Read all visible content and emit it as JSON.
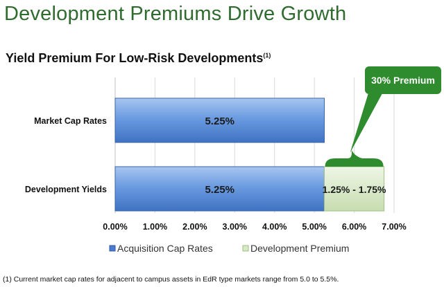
{
  "slide": {
    "title": "Development Premiums Drive Growth",
    "footnote": "(1) Current market cap rates for adjacent to campus assets in EdR type markets range from 5.0 to 5.5%."
  },
  "chart_data": {
    "type": "bar",
    "orientation": "horizontal",
    "stacked": true,
    "title": "Yield Premium For Low-Risk Developments",
    "title_superscript": "(1)",
    "categories": [
      "Market Cap Rates",
      "Development Yields"
    ],
    "series": [
      {
        "name": "Acquisition Cap Rates",
        "values": [
          5.25,
          5.25
        ],
        "labels": [
          "5.25%",
          "5.25%"
        ],
        "color": "#5b8ed8"
      },
      {
        "name": "Development Premium",
        "values": [
          0,
          1.5
        ],
        "labels": [
          "",
          "1.25% - 1.75%"
        ],
        "color": "#d6e9c4"
      }
    ],
    "xlim": [
      0,
      7
    ],
    "xticks": [
      "0.00%",
      "1.00%",
      "2.00%",
      "3.00%",
      "4.00%",
      "5.00%",
      "6.00%",
      "7.00%"
    ],
    "grid": true,
    "legend": "bottom",
    "callout": {
      "text": "30% Premium",
      "color": "#2e8b2e"
    }
  }
}
